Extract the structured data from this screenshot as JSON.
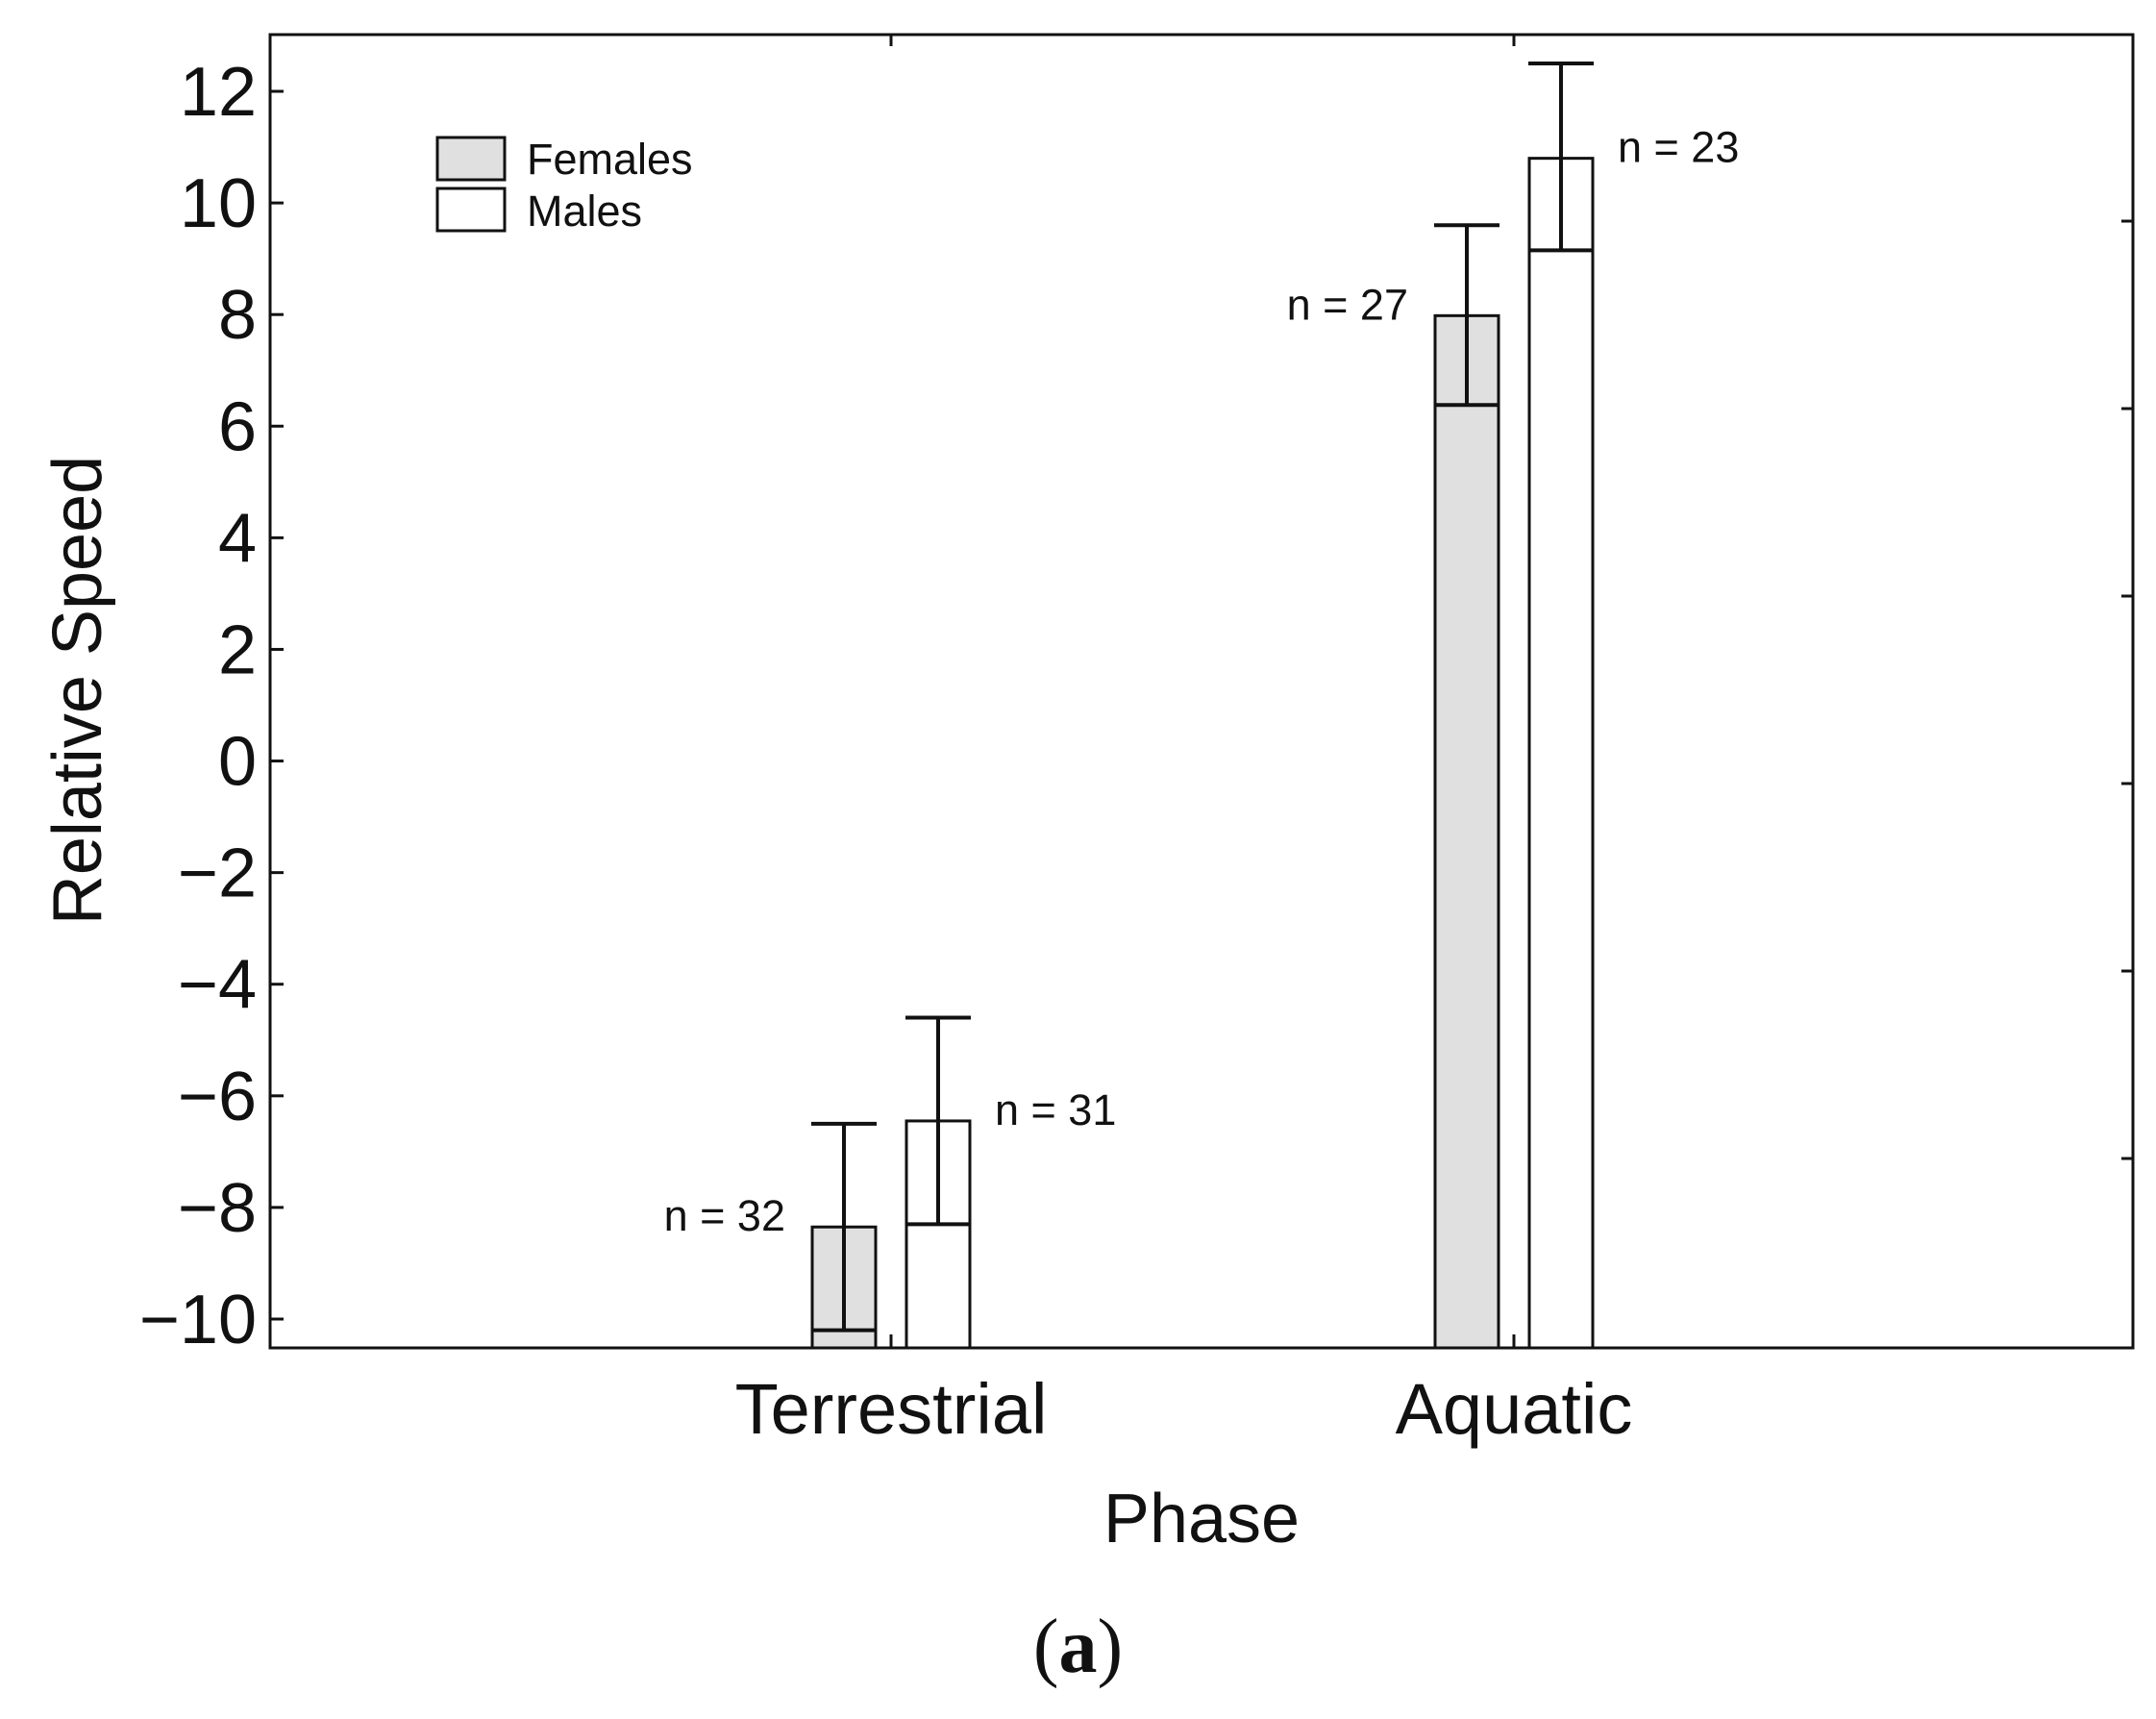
{
  "chart_data": {
    "type": "bar",
    "categories": [
      "Terrestrial",
      "Aquatic"
    ],
    "series": [
      {
        "name": "Females",
        "values": [
          -8.35,
          7.98
        ],
        "error_low": [
          -10.2,
          6.38
        ],
        "error_high": [
          -6.5,
          9.6
        ],
        "n_labels": [
          "n = 32",
          "n = 27"
        ],
        "fill": "#e0e0e0"
      },
      {
        "name": "Males",
        "values": [
          -6.45,
          10.8
        ],
        "error_low": [
          -8.3,
          9.15
        ],
        "error_high": [
          -4.6,
          12.5
        ],
        "n_labels": [
          "n = 31",
          "n = 23"
        ],
        "fill": "#ffffff"
      }
    ],
    "xlabel": "Phase",
    "ylabel": "Relative Speed",
    "yticks": [
      12,
      10,
      8,
      6,
      4,
      2,
      0,
      -2,
      -4,
      -6,
      -8,
      -10
    ],
    "ytick_labels": [
      "12",
      "10",
      "8",
      "6",
      "4",
      "2",
      "0",
      "−2",
      "−4",
      "−6",
      "−8",
      "−10"
    ],
    "ylim": [
      -10.5,
      13
    ],
    "legend_position": "top-left",
    "grid": false
  },
  "caption": {
    "open": "(",
    "letter": "a",
    "close": ")"
  },
  "colors": {
    "axis": "#111111",
    "females_fill": "#e0e0e0",
    "males_fill": "#ffffff"
  }
}
